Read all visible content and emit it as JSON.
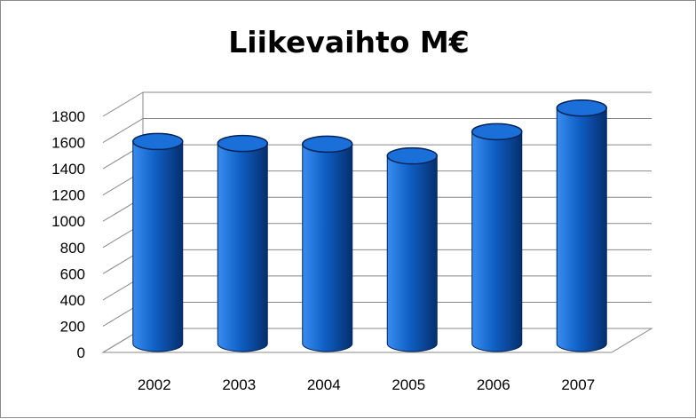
{
  "chart_data": {
    "type": "bar",
    "title": "Liikevaihto M€",
    "categories": [
      "2002",
      "2003",
      "2004",
      "2005",
      "2006",
      "2007"
    ],
    "values": [
      1540,
      1525,
      1520,
      1430,
      1615,
      1795
    ],
    "ylim": [
      0,
      1800
    ],
    "yticks": [
      0,
      200,
      400,
      600,
      800,
      1000,
      1200,
      1400,
      1600,
      1800
    ],
    "grid": true,
    "legend": "none",
    "colors": {
      "bar_light": "#3a8df0",
      "bar_mid": "#0f5fc4",
      "bar_dark": "#052f6e",
      "gridline": "#888888"
    },
    "style": "3d-cylinder"
  }
}
